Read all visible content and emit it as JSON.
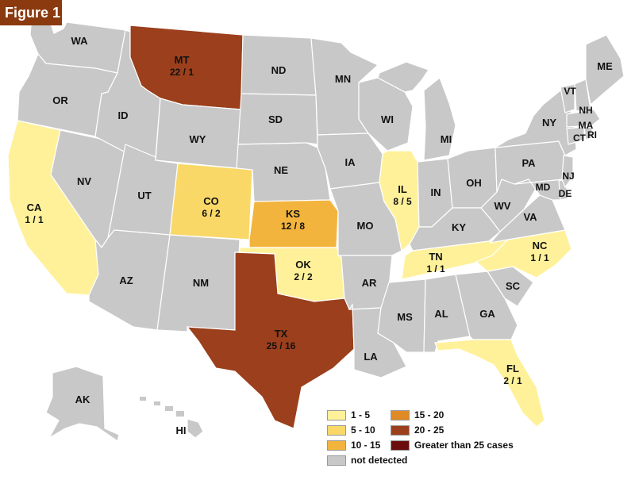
{
  "figure_label": "Figure 1",
  "colors": {
    "not_detected": "#c8c8c8",
    "c1_5": "#fff19a",
    "c5_10": "#f9d868",
    "c10_15": "#f3b43e",
    "c15_20": "#df8a24",
    "c20_25": "#9b3f1c",
    "c25plus": "#6b0d0d"
  },
  "states": {
    "WA": {
      "abbr": "WA"
    },
    "OR": {
      "abbr": "OR"
    },
    "CA": {
      "abbr": "CA",
      "value": "1 / 1"
    },
    "NV": {
      "abbr": "NV"
    },
    "ID": {
      "abbr": "ID"
    },
    "MT": {
      "abbr": "MT",
      "value": "22 / 1"
    },
    "WY": {
      "abbr": "WY"
    },
    "UT": {
      "abbr": "UT"
    },
    "AZ": {
      "abbr": "AZ"
    },
    "CO": {
      "abbr": "CO",
      "value": "6 / 2"
    },
    "NM": {
      "abbr": "NM"
    },
    "ND": {
      "abbr": "ND"
    },
    "SD": {
      "abbr": "SD"
    },
    "NE": {
      "abbr": "NE"
    },
    "KS": {
      "abbr": "KS",
      "value": "12 / 8"
    },
    "OK": {
      "abbr": "OK",
      "value": "2 / 2"
    },
    "TX": {
      "abbr": "TX",
      "value": "25 / 16"
    },
    "MN": {
      "abbr": "MN"
    },
    "IA": {
      "abbr": "IA"
    },
    "MO": {
      "abbr": "MO"
    },
    "AR": {
      "abbr": "AR"
    },
    "LA": {
      "abbr": "LA"
    },
    "WI": {
      "abbr": "WI"
    },
    "IL": {
      "abbr": "IL",
      "value": "8 / 5"
    },
    "MI": {
      "abbr": "MI"
    },
    "IN": {
      "abbr": "IN"
    },
    "OH": {
      "abbr": "OH"
    },
    "KY": {
      "abbr": "KY"
    },
    "TN": {
      "abbr": "TN",
      "value": "1 / 1"
    },
    "MS": {
      "abbr": "MS"
    },
    "AL": {
      "abbr": "AL"
    },
    "GA": {
      "abbr": "GA"
    },
    "FL": {
      "abbr": "FL",
      "value": "2 / 1"
    },
    "SC": {
      "abbr": "SC"
    },
    "NC": {
      "abbr": "NC",
      "value": "1 / 1"
    },
    "VA": {
      "abbr": "VA"
    },
    "WV": {
      "abbr": "WV"
    },
    "PA": {
      "abbr": "PA"
    },
    "NY": {
      "abbr": "NY"
    },
    "VT": {
      "abbr": "VT"
    },
    "NH": {
      "abbr": "NH"
    },
    "ME": {
      "abbr": "ME"
    },
    "MA": {
      "abbr": "MA"
    },
    "CT": {
      "abbr": "CT"
    },
    "RI": {
      "abbr": "RI"
    },
    "NJ": {
      "abbr": "NJ"
    },
    "DE": {
      "abbr": "DE"
    },
    "MD": {
      "abbr": "MD"
    },
    "AK": {
      "abbr": "AK"
    },
    "HI": {
      "abbr": "HI"
    }
  },
  "legend": {
    "items": [
      {
        "label": "1 - 5"
      },
      {
        "label": "5 - 10"
      },
      {
        "label": "10 - 15"
      },
      {
        "label": "15 - 20"
      },
      {
        "label": "20 - 25"
      },
      {
        "label": "Greater than 25 cases"
      },
      {
        "label": "not detected"
      }
    ]
  }
}
